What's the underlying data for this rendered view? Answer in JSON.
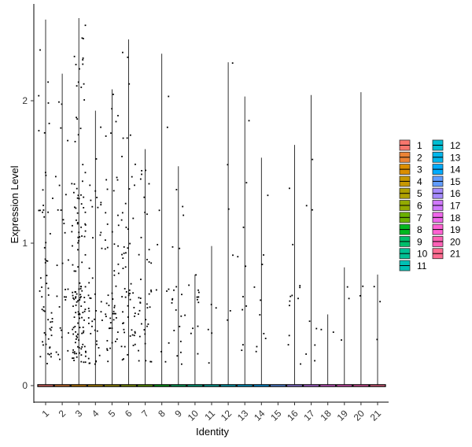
{
  "chart_data": {
    "type": "violin",
    "xlabel": "Identity",
    "ylabel": "Expression Level",
    "categories": [
      "1",
      "2",
      "3",
      "4",
      "5",
      "6",
      "7",
      "8",
      "9",
      "10",
      "11",
      "12",
      "13",
      "14",
      "15",
      "16",
      "17",
      "18",
      "19",
      "20",
      "21"
    ],
    "ylim": [
      -0.12,
      2.6
    ],
    "yticks": [
      0,
      1,
      2
    ],
    "legend_position": "right",
    "legend_columns": 2,
    "colors": [
      "#F8766D",
      "#EB8335",
      "#DB8E00",
      "#C79800",
      "#AFA100",
      "#93AA00",
      "#6BB100",
      "#00B81F",
      "#00BE6B",
      "#00C094",
      "#00C0B5",
      "#00BDD2",
      "#00B6EB",
      "#00ABFD",
      "#619CFF",
      "#A58AFF",
      "#D078FF",
      "#EF67EB",
      "#FD61D3",
      "#FF62B6",
      "#FF6C91"
    ],
    "series_max": [
      2.57,
      2.19,
      2.58,
      1.93,
      2.08,
      2.43,
      1.66,
      2.33,
      1.54,
      0.78,
      0.98,
      2.27,
      2.03,
      1.6,
      0.0,
      1.69,
      2.04,
      0.5,
      0.83,
      2.06,
      0.78
    ],
    "point_counts": [
      60,
      30,
      140,
      45,
      55,
      60,
      40,
      10,
      20,
      12,
      5,
      6,
      10,
      10,
      0,
      12,
      8,
      2,
      3,
      2,
      3
    ],
    "zero_fraction": 0.9
  }
}
